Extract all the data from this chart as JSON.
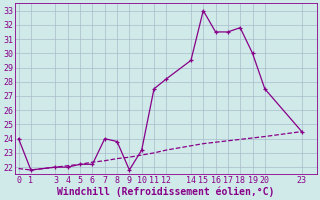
{
  "xlabel": "Windchill (Refroidissement éolien,°C)",
  "bg_color": "#d0eaea",
  "line_color": "#880088",
  "x_main": [
    0,
    1,
    3,
    4,
    5,
    6,
    7,
    8,
    9,
    10,
    11,
    12,
    14,
    15,
    16,
    17,
    18,
    19,
    20,
    23
  ],
  "y_main": [
    24.0,
    21.8,
    22.0,
    22.0,
    22.2,
    22.2,
    24.0,
    23.8,
    21.8,
    23.2,
    27.5,
    28.2,
    29.5,
    33.0,
    31.5,
    31.5,
    31.8,
    30.0,
    27.5,
    24.5
  ],
  "x_line2": [
    0,
    1,
    3,
    4,
    5,
    6,
    7,
    8,
    9,
    10,
    11,
    12,
    14,
    15,
    16,
    17,
    18,
    19,
    20,
    23
  ],
  "y_line2": [
    21.9,
    21.8,
    22.0,
    22.1,
    22.2,
    22.35,
    22.45,
    22.6,
    22.7,
    22.85,
    23.0,
    23.2,
    23.5,
    23.65,
    23.75,
    23.85,
    23.95,
    24.05,
    24.15,
    24.5
  ],
  "ylim": [
    21.5,
    33.5
  ],
  "yticks": [
    22,
    23,
    24,
    25,
    26,
    27,
    28,
    29,
    30,
    31,
    32,
    33
  ],
  "xlim": [
    -0.3,
    24.2
  ],
  "xticks": [
    0,
    1,
    3,
    4,
    5,
    6,
    7,
    8,
    9,
    10,
    11,
    12,
    14,
    15,
    16,
    17,
    18,
    19,
    20,
    23
  ],
  "grid_color": "#aabbcc",
  "tick_fontsize": 6,
  "xlabel_fontsize": 7,
  "lw": 0.9,
  "marker_size": 3
}
